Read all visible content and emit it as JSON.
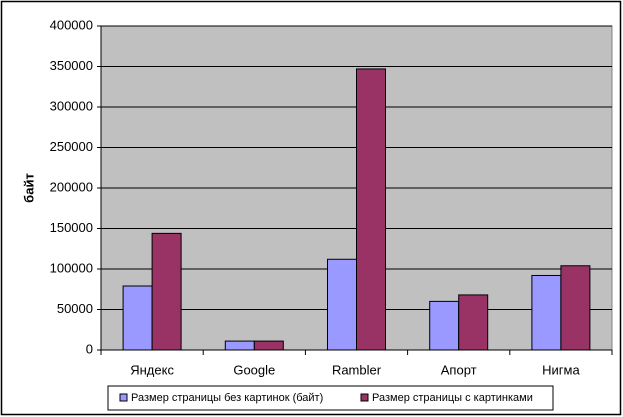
{
  "chart_data": {
    "type": "bar",
    "y_label": "байт",
    "categories": [
      "Яндекс",
      "Google",
      "Rambler",
      "Апорт",
      "Нигма"
    ],
    "series": [
      {
        "name": "Размер страницы без картинок (байт)",
        "color": "#9999ff",
        "values": [
          79000,
          11000,
          112000,
          60000,
          92000
        ]
      },
      {
        "name": "Размер страницы с картинками",
        "color": "#993366",
        "values": [
          144000,
          11000,
          347000,
          68000,
          104000
        ]
      }
    ],
    "ylim": [
      0,
      400000
    ],
    "yticks": [
      0,
      50000,
      100000,
      150000,
      200000,
      250000,
      300000,
      350000,
      400000
    ],
    "grid": true,
    "legend": "bottom"
  }
}
